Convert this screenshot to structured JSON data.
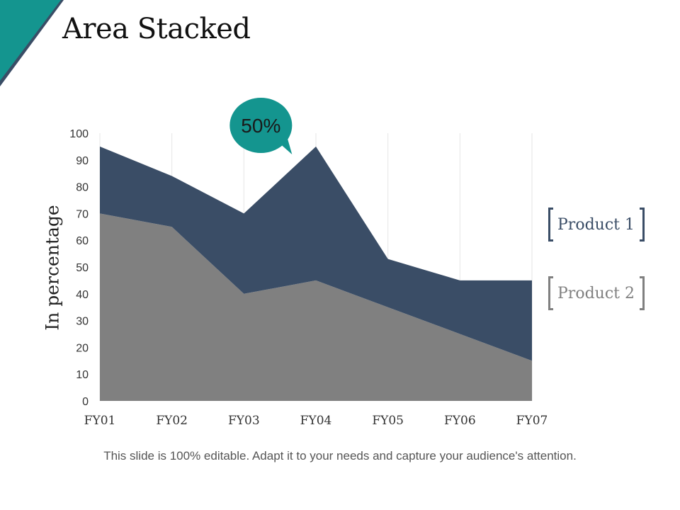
{
  "slide": {
    "title": "Area Stacked",
    "footer": "This slide is 100% editable. Adapt it to your needs and capture your audience's attention."
  },
  "colors": {
    "accent": "#14958f",
    "product_1": "#3a4d66",
    "product_2": "#808080",
    "grid": "#e6e6e6"
  },
  "chart_data": {
    "type": "area",
    "stacked": true,
    "title": "",
    "xlabel": "",
    "ylabel": "In percentage",
    "categories": [
      "FY01",
      "FY02",
      "FY03",
      "FY04",
      "FY05",
      "FY06",
      "FY07"
    ],
    "series": [
      {
        "name": "Product 2",
        "values": [
          70,
          65,
          40,
          45,
          35,
          25,
          15
        ]
      },
      {
        "name": "Product 1",
        "values": [
          25,
          19,
          30,
          50,
          18,
          20,
          30
        ]
      }
    ],
    "ylim": [
      0,
      100
    ],
    "yticks": [
      0,
      10,
      20,
      30,
      40,
      50,
      60,
      70,
      80,
      90,
      100
    ],
    "grid": "vertical",
    "legend": "right",
    "annotation": {
      "text": "50%",
      "category": "FY03"
    }
  },
  "legend": {
    "product_1": "Product 1",
    "product_2": "Product 2"
  }
}
